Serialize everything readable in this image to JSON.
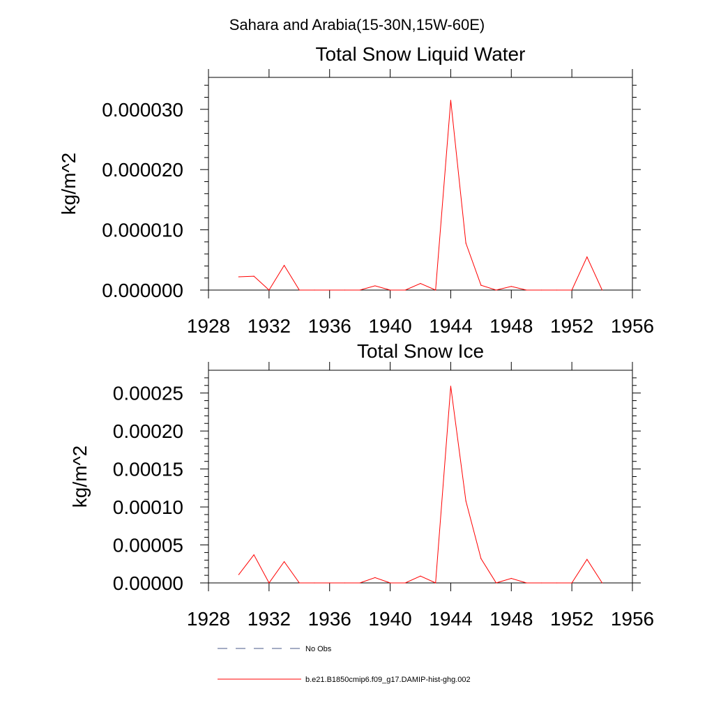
{
  "suptitle": "Sahara and Arabia(15-30N,15W-60E)",
  "colors": {
    "model_line": "#ff0000",
    "obs_line": "#4a5a8a",
    "axis": "#000000"
  },
  "legend": {
    "obs_label": "No Obs",
    "model_label": "b.e21.B1850cmip6.f09_g17.DAMIP-hist-ghg.002"
  },
  "chart_data": [
    {
      "type": "line",
      "title": "Total Snow Liquid Water",
      "ylabel": "kg/m^2",
      "xlabel": "",
      "xlim": [
        1928,
        1956
      ],
      "ylim": [
        0,
        3.53e-05
      ],
      "xticks": [
        "1928",
        "1932",
        "1936",
        "1940",
        "1944",
        "1948",
        "1952",
        "1956"
      ],
      "yticks": [
        "0.000000",
        "0.000010",
        "0.000020",
        "0.000030"
      ],
      "series": [
        {
          "name": "b.e21.B1850cmip6.f09_g17.DAMIP-hist-ghg.002",
          "x": [
            1930,
            1931,
            1932,
            1933,
            1934,
            1935,
            1936,
            1937,
            1938,
            1939,
            1940,
            1941,
            1942,
            1943,
            1944,
            1945,
            1946,
            1947,
            1948,
            1949,
            1950,
            1951,
            1952,
            1953,
            1954
          ],
          "y": [
            2.2e-06,
            2.3e-06,
            0.0,
            4.1e-06,
            0.0,
            0.0,
            0.0,
            0.0,
            0.0,
            7e-07,
            0.0,
            0.0,
            1.1e-06,
            0.0,
            3.15e-05,
            7.8e-06,
            8e-07,
            0.0,
            6e-07,
            0.0,
            0.0,
            0.0,
            0.0,
            5.5e-06,
            0.0
          ]
        }
      ]
    },
    {
      "type": "line",
      "title": "Total Snow Ice",
      "ylabel": "kg/m^2",
      "xlabel": "",
      "xlim": [
        1928,
        1956
      ],
      "ylim": [
        0,
        0.00028
      ],
      "xticks": [
        "1928",
        "1932",
        "1936",
        "1940",
        "1944",
        "1948",
        "1952",
        "1956"
      ],
      "yticks": [
        "0.00000",
        "0.00005",
        "0.00010",
        "0.00015",
        "0.00020",
        "0.00025"
      ],
      "series": [
        {
          "name": "b.e21.B1850cmip6.f09_g17.DAMIP-hist-ghg.002",
          "x": [
            1930,
            1931,
            1932,
            1933,
            1934,
            1935,
            1936,
            1937,
            1938,
            1939,
            1940,
            1941,
            1942,
            1943,
            1944,
            1945,
            1946,
            1947,
            1948,
            1949,
            1950,
            1951,
            1952,
            1953,
            1954
          ],
          "y": [
            1.1e-05,
            3.7e-05,
            0.0,
            2.8e-05,
            0.0,
            0.0,
            0.0,
            0.0,
            0.0,
            7e-06,
            0.0,
            0.0,
            9e-06,
            0.0,
            0.000259,
            0.000108,
            3.2e-05,
            0.0,
            6e-06,
            0.0,
            0.0,
            0.0,
            0.0,
            3.1e-05,
            0.0
          ]
        }
      ]
    }
  ]
}
